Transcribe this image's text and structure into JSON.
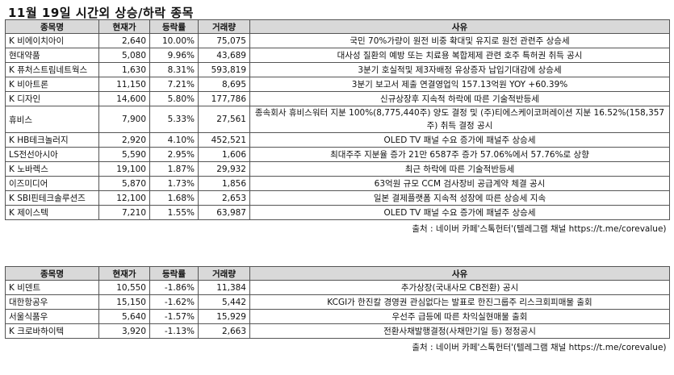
{
  "title": "11월 19일  시간외 상승/하락 종목",
  "headers": {
    "name": "종목명",
    "price": "현재가",
    "change": "등락률",
    "volume": "거래량",
    "reason": "사유"
  },
  "rising": [
    {
      "name": "K 비에이치아이",
      "price": "2,640",
      "change": "10.00%",
      "volume": "75,075",
      "reason": "국민 70%가량이 원전 비중 확대및 유지로 원전 관련주 상승세"
    },
    {
      "name": "  현대약품",
      "price": "5,080",
      "change": "9.96%",
      "volume": "43,689",
      "reason": "대사성 질환의 예방 또는 치료용 복합제제 관련 호주 특허권 취득 공시"
    },
    {
      "name": "K 퓨처스트림네트웍스",
      "price": "1,630",
      "change": "8.31%",
      "volume": "593,819",
      "reason": "3분기 호실적및 제3자배정 유상증자 납입기대감에 상승세"
    },
    {
      "name": "K 비아트론",
      "price": "11,150",
      "change": "7.21%",
      "volume": "8,695",
      "reason": "3분기 보고서 제출 연결영업익 157.13억원 YOY +60.39%"
    },
    {
      "name": "K 디자인",
      "price": "14,600",
      "change": "5.80%",
      "volume": "177,786",
      "reason": "신규상장후 지속적 하락에 따른 기술적반등세"
    },
    {
      "name": "  휴비스",
      "price": "7,900",
      "change": "5.33%",
      "volume": "27,561",
      "reason": "종속회사 휴비스워터 지분 100%(8,775,440주) 양도 결정 및 (주)티에스케이코퍼레이션 지분 16.52%(158,357주) 취득 결정 공시"
    },
    {
      "name": "K HB테크놀러지",
      "price": "2,920",
      "change": "4.10%",
      "volume": "452,521",
      "reason": "OLED TV 패널 수요 증가에 패널주 상승세"
    },
    {
      "name": "LS전선아시아",
      "price": "5,590",
      "change": "2.95%",
      "volume": "1,606",
      "reason": "최대주주 지분율 증가 21만 6587주 증가 57.06%에서 57.76%로 상향"
    },
    {
      "name": "K 노바렉스",
      "price": "19,100",
      "change": "1.87%",
      "volume": "29,932",
      "reason": "최근 하락에 따른 기술적반등세"
    },
    {
      "name": "이즈미디어",
      "price": "5,870",
      "change": "1.73%",
      "volume": "1,856",
      "reason": "63억원 규모 CCM 검사장비 공급계약 체결 공시"
    },
    {
      "name": "K SBI핀테크솔루션즈",
      "price": "12,100",
      "change": "1.68%",
      "volume": "2,653",
      "reason": "일본 결제플랫폼 지속적 성장에 따른 상승세 지속"
    },
    {
      "name": "K 제이스텍",
      "price": "7,210",
      "change": "1.55%",
      "volume": "63,987",
      "reason": "OLED TV 패널 수요 증가에 패널주 상승세"
    }
  ],
  "falling": [
    {
      "name": "K 비덴트",
      "price": "10,550",
      "change": "-1.86%",
      "volume": "11,384",
      "reason": "추가상장(국내사모 CB전환) 공시"
    },
    {
      "name": "  대한항공우",
      "price": "15,150",
      "change": "-1.62%",
      "volume": "5,442",
      "reason": "KCGI가 한진칼 경영권 관심없다는 발표로 한진그룹주 리스크회피매물 출회"
    },
    {
      "name": "  서울식품우",
      "price": "5,640",
      "change": "-1.57%",
      "volume": "15,929",
      "reason": "우선주 급등에 따른 차익실현매물 출회"
    },
    {
      "name": "K 크로바하이텍",
      "price": "3,920",
      "change": "-1.13%",
      "volume": "2,663",
      "reason": "전환사채발행결정(사채만기일 등) 정정공시"
    }
  ],
  "source": "출처 : 네이버 카페'스톡헌터'(텔레그램 채널 https://t.me/corevalue)"
}
